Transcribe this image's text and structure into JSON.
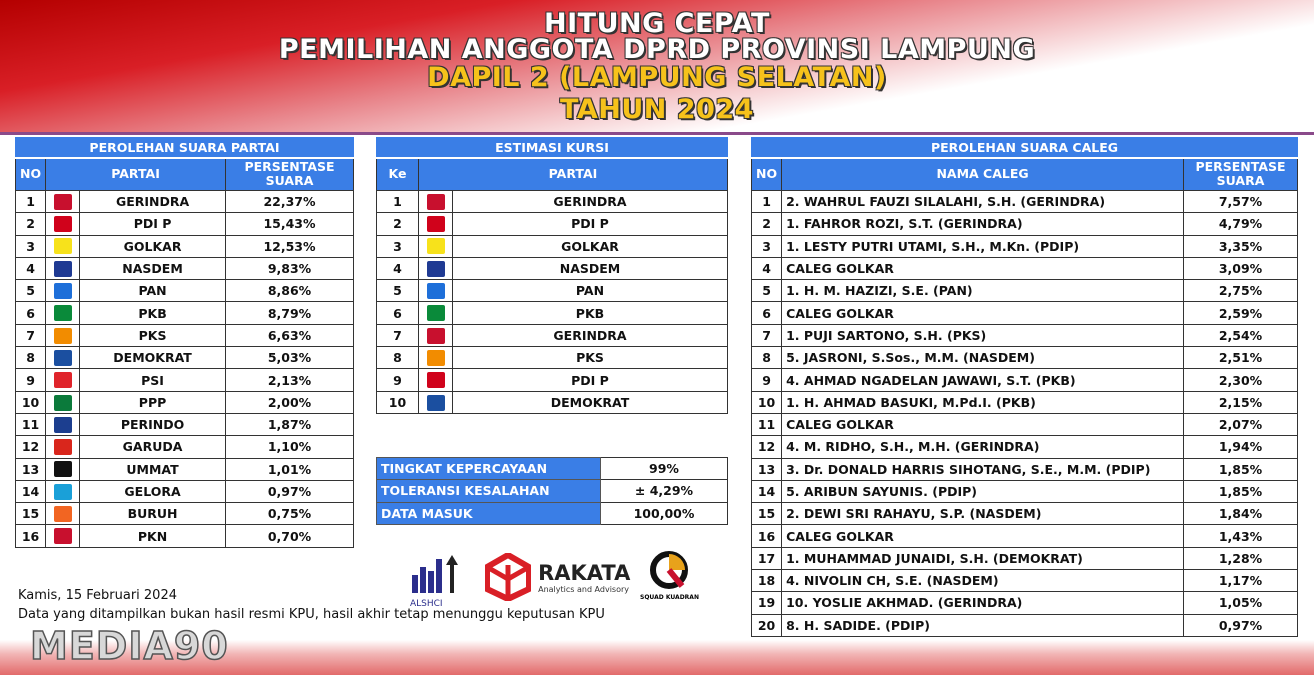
{
  "title": {
    "line1": "HITUNG CEPAT",
    "line2": "PEMILIHAN ANGGOTA DPRD PROVINSI LAMPUNG",
    "line3": "DAPIL 2 (LAMPUNG SELATAN)",
    "line4": "TAHUN 2024"
  },
  "party_votes": {
    "heading": "PEROLEHAN SUARA PARTAI",
    "col_no": "NO",
    "col_party": "PARTAI",
    "col_pct": "PERSENTASE SUARA",
    "rows": [
      {
        "no": "1",
        "party": "GERINDRA",
        "pct": "22,37%",
        "color": "#c8102e"
      },
      {
        "no": "2",
        "party": "PDI P",
        "pct": "15,43%",
        "color": "#d0021b"
      },
      {
        "no": "3",
        "party": "GOLKAR",
        "pct": "12,53%",
        "color": "#f7e21b"
      },
      {
        "no": "4",
        "party": "NASDEM",
        "pct": "9,83%",
        "color": "#1f3a93"
      },
      {
        "no": "5",
        "party": "PAN",
        "pct": "8,86%",
        "color": "#1e6fd9"
      },
      {
        "no": "6",
        "party": "PKB",
        "pct": "8,79%",
        "color": "#0a8a3a"
      },
      {
        "no": "7",
        "party": "PKS",
        "pct": "6,63%",
        "color": "#f28c00"
      },
      {
        "no": "8",
        "party": "DEMOKRAT",
        "pct": "5,03%",
        "color": "#1b4fa0"
      },
      {
        "no": "9",
        "party": "PSI",
        "pct": "2,13%",
        "color": "#e0242b"
      },
      {
        "no": "10",
        "party": "PPP",
        "pct": "2,00%",
        "color": "#0b7a3b"
      },
      {
        "no": "11",
        "party": "PERINDO",
        "pct": "1,87%",
        "color": "#1c3e8f"
      },
      {
        "no": "12",
        "party": "GARUDA",
        "pct": "1,10%",
        "color": "#d9261c"
      },
      {
        "no": "13",
        "party": "UMMAT",
        "pct": "1,01%",
        "color": "#111111"
      },
      {
        "no": "14",
        "party": "GELORA",
        "pct": "0,97%",
        "color": "#1aa0d8"
      },
      {
        "no": "15",
        "party": "BURUH",
        "pct": "0,75%",
        "color": "#f26522"
      },
      {
        "no": "16",
        "party": "PKN",
        "pct": "0,70%",
        "color": "#c8102e"
      }
    ]
  },
  "seats": {
    "heading": "ESTIMASI KURSI",
    "col_no": "Ke",
    "col_party": "PARTAI",
    "rows": [
      {
        "no": "1",
        "party": "GERINDRA",
        "color": "#c8102e"
      },
      {
        "no": "2",
        "party": "PDI P",
        "color": "#d0021b"
      },
      {
        "no": "3",
        "party": "GOLKAR",
        "color": "#f7e21b"
      },
      {
        "no": "4",
        "party": "NASDEM",
        "color": "#1f3a93"
      },
      {
        "no": "5",
        "party": "PAN",
        "color": "#1e6fd9"
      },
      {
        "no": "6",
        "party": "PKB",
        "color": "#0a8a3a"
      },
      {
        "no": "7",
        "party": "GERINDRA",
        "color": "#c8102e"
      },
      {
        "no": "8",
        "party": "PKS",
        "color": "#f28c00"
      },
      {
        "no": "9",
        "party": "PDI P",
        "color": "#d0021b"
      },
      {
        "no": "10",
        "party": "DEMOKRAT",
        "color": "#1b4fa0"
      }
    ]
  },
  "stats": [
    {
      "label": "TINGKAT KEPERCAYAAN",
      "value": "99%"
    },
    {
      "label": "TOLERANSI KESALAHAN",
      "value": "± 4,29%"
    },
    {
      "label": "DATA MASUK",
      "value": "100,00%"
    }
  ],
  "candidates": {
    "heading": "PEROLEHAN SUARA CALEG",
    "col_no": "NO",
    "col_name": "NAMA CALEG",
    "col_pct": "PERSENTASE SUARA",
    "rows": [
      {
        "no": "1",
        "name": "2. WAHRUL FAUZI SILALAHI, S.H. (GERINDRA)",
        "pct": "7,57%"
      },
      {
        "no": "2",
        "name": "1. FAHROR ROZI, S.T. (GERINDRA)",
        "pct": "4,79%"
      },
      {
        "no": "3",
        "name": "1. LESTY PUTRI UTAMI, S.H., M.Kn. (PDIP)",
        "pct": "3,35%"
      },
      {
        "no": "4",
        "name": "CALEG GOLKAR",
        "pct": "3,09%"
      },
      {
        "no": "5",
        "name": "1. H. M. HAZIZI, S.E. (PAN)",
        "pct": "2,75%"
      },
      {
        "no": "6",
        "name": "CALEG GOLKAR",
        "pct": "2,59%"
      },
      {
        "no": "7",
        "name": "1. PUJI SARTONO, S.H. (PKS)",
        "pct": "2,54%"
      },
      {
        "no": "8",
        "name": "5. JASRONI, S.Sos., M.M. (NASDEM)",
        "pct": "2,51%"
      },
      {
        "no": "9",
        "name": "4. AHMAD NGADELAN JAWAWI, S.T. (PKB)",
        "pct": "2,30%"
      },
      {
        "no": "10",
        "name": "1. H. AHMAD BASUKI, M.Pd.I. (PKB)",
        "pct": "2,15%"
      },
      {
        "no": "11",
        "name": "CALEG GOLKAR",
        "pct": "2,07%"
      },
      {
        "no": "12",
        "name": "4. M. RIDHO, S.H., M.H. (GERINDRA)",
        "pct": "1,94%"
      },
      {
        "no": "13",
        "name": "3. Dr. DONALD HARRIS SIHOTANG, S.E., M.M. (PDIP)",
        "pct": "1,85%"
      },
      {
        "no": "14",
        "name": "5. ARIBUN SAYUNIS. (PDIP)",
        "pct": "1,85%"
      },
      {
        "no": "15",
        "name": "2. DEWI SRI RAHAYU, S.P. (NASDEM)",
        "pct": "1,84%"
      },
      {
        "no": "16",
        "name": "CALEG GOLKAR",
        "pct": "1,43%"
      },
      {
        "no": "17",
        "name": "1. MUHAMMAD JUNAIDI, S.H. (DEMOKRAT)",
        "pct": "1,28%"
      },
      {
        "no": "18",
        "name": "4. NIVOLIN CH, S.E. (NASDEM)",
        "pct": "1,17%"
      },
      {
        "no": "19",
        "name": "10. YOSLIE AKHMAD. (GERINDRA)",
        "pct": "1,05%"
      },
      {
        "no": "20",
        "name": "8. H. SADIDE. (PDIP)",
        "pct": "0,97%"
      }
    ]
  },
  "footer": {
    "date": "Kamis, 15 Februari 2024",
    "disclaimer": "Data yang ditampilkan bukan hasil resmi KPU, hasil akhir tetap menunggu keputusan KPU"
  },
  "sponsors": {
    "alshci": "ALSHCI",
    "rakata": "RAKATA",
    "rakata_sub": "Analytics and Advisory",
    "squad": "SQUAD KUADRAN"
  },
  "watermark": "MEDIA90",
  "colors": {
    "header_blue": "#3a7ee6",
    "title_yellow": "#f6c21b",
    "flag_red": "#d91f26"
  }
}
